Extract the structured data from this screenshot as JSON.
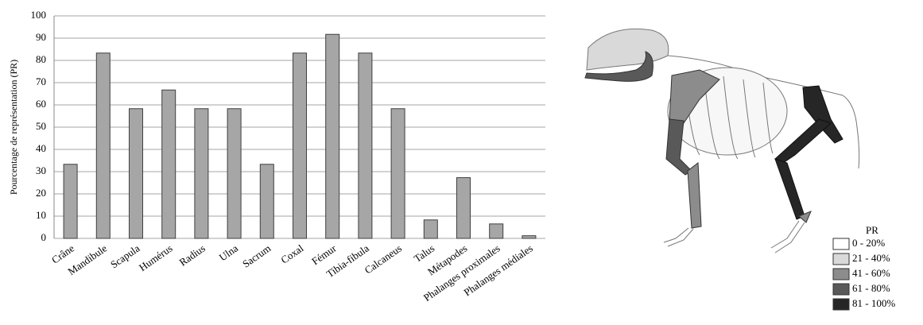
{
  "chart_data": {
    "type": "bar",
    "ylabel": "Pourcentage de représentation (PR)",
    "categories": [
      "Crâne",
      "Mandibule",
      "Scapula",
      "Humérus",
      "Radius",
      "Ulna",
      "Sacrum",
      "Coxal",
      "Fémur",
      "Tibia-fibula",
      "Calcaneus",
      "Talus",
      "Métapodes",
      "Phalanges proximales",
      "Phalanges médiales"
    ],
    "values": [
      33.3,
      83.3,
      58.3,
      66.7,
      58.3,
      58.3,
      33.3,
      83.3,
      91.7,
      83.3,
      58.3,
      8.3,
      27.3,
      6.5,
      1.2
    ],
    "color": "#a6a6a6",
    "ylim": [
      0,
      100
    ],
    "yticks": [
      0,
      10,
      20,
      30,
      40,
      50,
      60,
      70,
      80,
      90,
      100
    ],
    "grid": true
  },
  "legend": {
    "title": "PR",
    "items": [
      {
        "label": "0 - 20%",
        "color": "#ffffff"
      },
      {
        "label": "21 - 40%",
        "color": "#d9d9d9"
      },
      {
        "label": "41 - 60%",
        "color": "#8c8c8c"
      },
      {
        "label": "61 - 80%",
        "color": "#595959"
      },
      {
        "label": "81 - 100%",
        "color": "#262626"
      }
    ]
  }
}
